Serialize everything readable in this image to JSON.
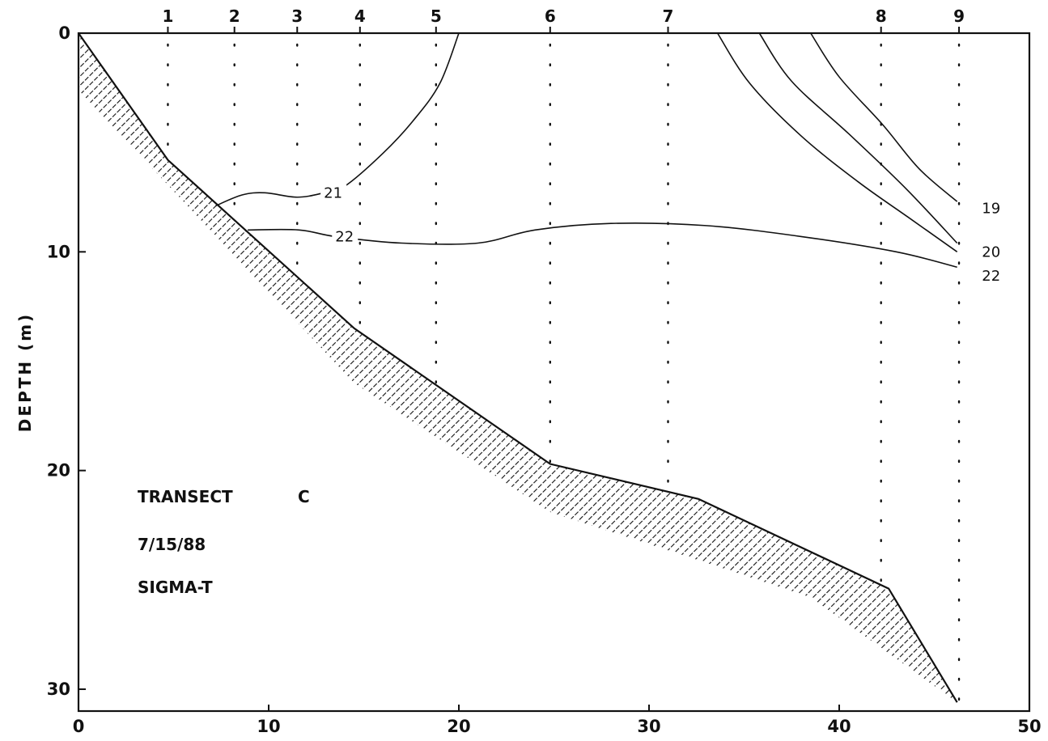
{
  "chart_data": {
    "type": "contour-section",
    "title": "",
    "xlabel": "",
    "ylabel": "DEPTH (m)",
    "xlim": [
      0,
      50
    ],
    "ylim": [
      0,
      31
    ],
    "y_inverted": true,
    "x_ticks": [
      0,
      10,
      20,
      30,
      40,
      50
    ],
    "y_ticks": [
      0,
      10,
      20,
      30
    ],
    "colors": {
      "ink": "#111111",
      "background": "#ffffff"
    },
    "annotations": [
      "TRANSECT",
      "C",
      "7/15/88",
      "SIGMA-T"
    ],
    "stations": [
      {
        "label": "1",
        "x": 4.7
      },
      {
        "label": "2",
        "x": 8.2
      },
      {
        "label": "3",
        "x": 11.5
      },
      {
        "label": "4",
        "x": 14.8
      },
      {
        "label": "5",
        "x": 18.8
      },
      {
        "label": "6",
        "x": 24.8
      },
      {
        "label": "7",
        "x": 31.0
      },
      {
        "label": "8",
        "x": 42.2
      },
      {
        "label": "9",
        "x": 46.3
      }
    ],
    "bottom_profile": [
      [
        0,
        0
      ],
      [
        4.7,
        5.8
      ],
      [
        14.5,
        13.5
      ],
      [
        24.8,
        19.7
      ],
      [
        32.6,
        21.3
      ],
      [
        42.6,
        25.4
      ],
      [
        46.2,
        30.6
      ]
    ],
    "sediment_lower_edge": [
      [
        0,
        2.6
      ],
      [
        14.5,
        16.0
      ],
      [
        24.8,
        21.9
      ],
      [
        32.6,
        24.1
      ],
      [
        38.5,
        25.8
      ],
      [
        46.2,
        30.6
      ]
    ],
    "contours": [
      {
        "label": "21",
        "label_at": [
          12.9,
          7.3
        ],
        "points": [
          [
            20.0,
            0
          ],
          [
            19.0,
            2.3
          ],
          [
            17.6,
            4.0
          ],
          [
            16.0,
            5.5
          ],
          [
            14.0,
            7.0
          ],
          [
            12.9,
            7.3
          ],
          [
            11.5,
            7.5
          ],
          [
            9.8,
            7.3
          ],
          [
            8.6,
            7.4
          ],
          [
            7.2,
            7.9
          ]
        ]
      },
      {
        "label": "22",
        "label_at": [
          13.5,
          9.3
        ],
        "points": [
          [
            8.9,
            9.0
          ],
          [
            11.6,
            9.0
          ],
          [
            13.5,
            9.3
          ],
          [
            17.0,
            9.6
          ],
          [
            21.0,
            9.6
          ],
          [
            24.0,
            9.0
          ],
          [
            28.0,
            8.7
          ],
          [
            33.0,
            8.8
          ],
          [
            38.0,
            9.3
          ],
          [
            43.0,
            10.0
          ],
          [
            46.2,
            10.7
          ]
        ]
      },
      {
        "label": "20",
        "label_at": [
          47.5,
          10.0
        ],
        "points": [
          [
            33.6,
            0
          ],
          [
            35.3,
            2.3
          ],
          [
            38.0,
            4.7
          ],
          [
            41.0,
            6.8
          ],
          [
            43.6,
            8.4
          ],
          [
            46.2,
            10.0
          ]
        ]
      },
      {
        "label": "",
        "label_at": null,
        "points": [
          [
            35.8,
            0
          ],
          [
            37.5,
            2.2
          ],
          [
            40.5,
            4.6
          ],
          [
            43.5,
            7.1
          ],
          [
            46.2,
            9.6
          ]
        ]
      },
      {
        "label": "19",
        "label_at": [
          47.5,
          7.9
        ],
        "points": [
          [
            38.5,
            0
          ],
          [
            40.0,
            2.0
          ],
          [
            42.3,
            4.2
          ],
          [
            44.2,
            6.2
          ],
          [
            46.2,
            7.7
          ]
        ]
      }
    ],
    "contour_side_labels": [
      {
        "label": "19",
        "at": [
          47.5,
          8.0
        ]
      },
      {
        "label": "20",
        "at": [
          47.5,
          10.0
        ]
      },
      {
        "label": "22",
        "at": [
          47.5,
          11.1
        ]
      }
    ]
  }
}
